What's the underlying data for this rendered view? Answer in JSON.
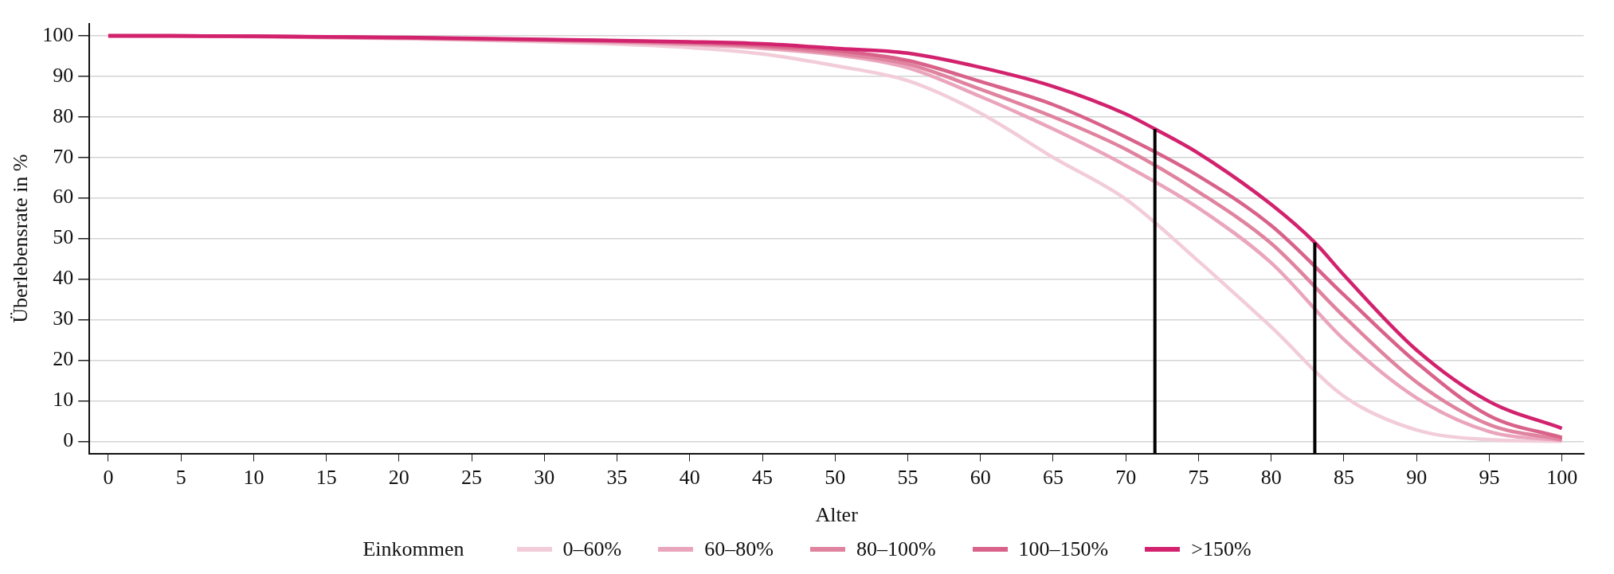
{
  "chart_data": {
    "type": "line",
    "xlabel": "Alter",
    "ylabel": "Überlebensrate in %",
    "legend_title": "Einkommen",
    "legend": "bottom",
    "grid": "y",
    "marker": "none",
    "line_style": "solid",
    "x": [
      0,
      10,
      20,
      30,
      40,
      45,
      50,
      55,
      60,
      65,
      70,
      75,
      80,
      85,
      90,
      95,
      100
    ],
    "xlim": [
      -1.3,
      101.5
    ],
    "xticks": [
      0,
      5,
      10,
      15,
      20,
      25,
      30,
      35,
      40,
      45,
      50,
      55,
      60,
      65,
      70,
      75,
      80,
      85,
      90,
      95,
      100
    ],
    "ylim": [
      -3,
      103
    ],
    "yticks": [
      0,
      10,
      20,
      30,
      40,
      50,
      60,
      70,
      80,
      90,
      100
    ],
    "series": [
      {
        "name": "0–60%",
        "color": "#f2cdd9",
        "values": [
          100,
          99.8,
          99.3,
          98.5,
          97.1,
          95.5,
          92.6,
          88.9,
          80.9,
          70,
          59.7,
          44.4,
          28.2,
          11.1,
          2.8,
          0.4,
          0
        ]
      },
      {
        "name": "60–80%",
        "color": "#eaa5bc",
        "values": [
          100,
          99.8,
          99.4,
          98.8,
          97.8,
          96.9,
          95.3,
          92.1,
          85,
          77,
          68,
          57.5,
          44,
          25.1,
          10.7,
          2.4,
          0.2
        ]
      },
      {
        "name": "80–100%",
        "color": "#e0839f",
        "values": [
          100,
          99.9,
          99.5,
          98.9,
          98.1,
          97.3,
          95.7,
          93,
          86.8,
          80,
          72,
          61.5,
          48.8,
          30.8,
          14.6,
          4.1,
          0.4
        ]
      },
      {
        "name": "100–150%",
        "color": "#d9628a",
        "values": [
          100,
          99.9,
          99.5,
          99,
          98.3,
          97.6,
          96.4,
          93.9,
          88.7,
          83,
          75,
          65.4,
          53.2,
          36.1,
          19.4,
          6.3,
          0.9
        ]
      },
      {
        "name": ">150%",
        "color": "#d2226e",
        "x": [
          0,
          10,
          20,
          30,
          40,
          45,
          50,
          55,
          60,
          65,
          70,
          72,
          75,
          80,
          83,
          85,
          90,
          95,
          100
        ],
        "values": [
          100,
          99.9,
          99.6,
          99.1,
          98.5,
          98,
          96.9,
          95.7,
          92.2,
          87.5,
          80.7,
          77,
          71,
          58.4,
          49,
          41,
          22.5,
          9.8,
          3.2
        ]
      }
    ],
    "ref_lines": [
      {
        "axis": "x",
        "value": 72,
        "color": "#000000"
      },
      {
        "axis": "x",
        "value": 83,
        "color": "#000000"
      }
    ]
  }
}
